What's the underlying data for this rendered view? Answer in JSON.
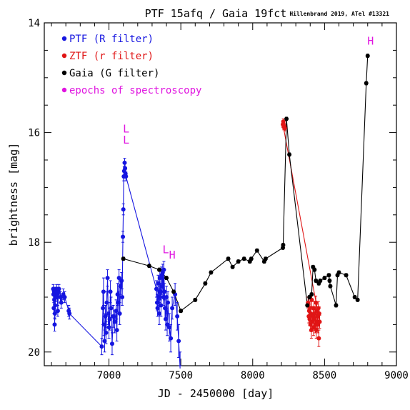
{
  "chart_data": {
    "type": "scatter",
    "title": "PTF 15afq / Gaia 19fct",
    "credit": "Hillenbrand 2019, ATel #13321",
    "xlabel": "JD - 2450000 [day]",
    "ylabel": "brightness [mag]",
    "xlim": [
      6550,
      9000
    ],
    "ylim": [
      20.25,
      14.0
    ],
    "y_inverted": true,
    "x_ticks": [
      7000,
      7500,
      8000,
      8500,
      9000
    ],
    "y_ticks": [
      14,
      16,
      18,
      20
    ],
    "legend_position": "top-left",
    "colors": {
      "ptf": "#1515e0",
      "ztf": "#e01515",
      "gaia": "#000000",
      "spec": "#e015e0"
    },
    "legend": [
      {
        "label": "PTF (R filter)",
        "color": "#1515e0"
      },
      {
        "label": "ZTF (r filter)",
        "color": "#e01515"
      },
      {
        "label": "Gaia (G filter)",
        "color": "#000000"
      },
      {
        "label": "epochs of spectroscopy",
        "color": "#e015e0"
      }
    ],
    "series": [
      {
        "name": "PTF (R filter)",
        "color": "#1515e0",
        "connect": "first-last-of-groups",
        "points": [
          [
            6612,
            18.85,
            0.08
          ],
          [
            6614,
            18.95,
            0.08
          ],
          [
            6616,
            19.2,
            0.1
          ],
          [
            6618,
            18.9,
            0.08
          ],
          [
            6620,
            19.05,
            0.08
          ],
          [
            6622,
            19.5,
            0.12
          ],
          [
            6624,
            19.3,
            0.1
          ],
          [
            6626,
            19.15,
            0.1
          ],
          [
            6628,
            18.9,
            0.08
          ],
          [
            6632,
            19.0,
            0.08
          ],
          [
            6636,
            18.85,
            0.08
          ],
          [
            6640,
            18.95,
            0.08
          ],
          [
            6644,
            19.25,
            0.1
          ],
          [
            6648,
            18.9,
            0.08
          ],
          [
            6652,
            18.85,
            0.08
          ],
          [
            6662,
            19.0,
            0.1
          ],
          [
            6668,
            19.1,
            0.1
          ],
          [
            6682,
            18.95,
            0.1
          ],
          [
            6692,
            19.0,
            0.1
          ],
          [
            6720,
            19.25,
            0.1
          ],
          [
            6725,
            19.3,
            0.1
          ],
          [
            6950,
            19.9,
            0.15
          ],
          [
            6958,
            19.2,
            0.3
          ],
          [
            6962,
            18.9,
            0.25
          ],
          [
            6966,
            19.5,
            0.2
          ],
          [
            6970,
            19.8,
            0.2
          ],
          [
            6975,
            19.35,
            0.2
          ],
          [
            6980,
            19.65,
            0.2
          ],
          [
            6985,
            19.1,
            0.2
          ],
          [
            6990,
            18.65,
            0.15
          ],
          [
            6995,
            19.3,
            0.2
          ],
          [
            7000,
            19.55,
            0.2
          ],
          [
            7005,
            19.4,
            0.2
          ],
          [
            7010,
            18.9,
            0.2
          ],
          [
            7015,
            19.2,
            0.2
          ],
          [
            7022,
            19.85,
            0.2
          ],
          [
            7030,
            19.35,
            0.2
          ],
          [
            7040,
            19.45,
            0.2
          ],
          [
            7050,
            19.25,
            0.2
          ],
          [
            7055,
            19.6,
            0.2
          ],
          [
            7060,
            18.95,
            0.2
          ],
          [
            7065,
            19.1,
            0.2
          ],
          [
            7070,
            18.65,
            0.15
          ],
          [
            7075,
            19.3,
            0.2
          ],
          [
            7080,
            18.8,
            0.15
          ],
          [
            7088,
            18.7,
            0.15
          ],
          [
            7092,
            19.0,
            0.15
          ],
          [
            7097,
            17.9,
            0.1
          ],
          [
            7100,
            17.4,
            0.1
          ],
          [
            7103,
            16.8,
            0.08
          ],
          [
            7106,
            16.7,
            0.08
          ],
          [
            7109,
            16.55,
            0.08
          ],
          [
            7112,
            16.65,
            0.08
          ],
          [
            7115,
            16.75,
            0.08
          ],
          [
            7118,
            16.8,
            0.08
          ],
          [
            7330,
            18.85,
            0.15
          ],
          [
            7335,
            19.1,
            0.15
          ],
          [
            7338,
            19.2,
            0.15
          ],
          [
            7342,
            18.75,
            0.15
          ],
          [
            7346,
            19.0,
            0.15
          ],
          [
            7350,
            19.3,
            0.2
          ],
          [
            7354,
            18.65,
            0.15
          ],
          [
            7358,
            18.9,
            0.15
          ],
          [
            7362,
            19.15,
            0.2
          ],
          [
            7366,
            18.6,
            0.15
          ],
          [
            7370,
            18.8,
            0.15
          ],
          [
            7374,
            18.55,
            0.15
          ],
          [
            7378,
            19.0,
            0.15
          ],
          [
            7382,
            18.5,
            0.15
          ],
          [
            7386,
            18.9,
            0.15
          ],
          [
            7390,
            19.2,
            0.2
          ],
          [
            7395,
            19.4,
            0.2
          ],
          [
            7400,
            19.0,
            0.2
          ],
          [
            7405,
            19.5,
            0.2
          ],
          [
            7410,
            19.1,
            0.2
          ],
          [
            7420,
            19.55,
            0.25
          ],
          [
            7430,
            19.75,
            0.25
          ],
          [
            7440,
            19.2,
            0.2
          ],
          [
            7460,
            18.95,
            0.2
          ],
          [
            7475,
            19.35,
            0.25
          ],
          [
            7485,
            19.8,
            0.3
          ],
          [
            7495,
            20.3,
            0.3
          ]
        ]
      },
      {
        "name": "ZTF (r filter)",
        "color": "#e01515",
        "connect": "first-last",
        "points": [
          [
            8210,
            15.85,
            0.05
          ],
          [
            8213,
            15.8,
            0.05
          ],
          [
            8216,
            15.9,
            0.05
          ],
          [
            8220,
            15.88,
            0.05
          ],
          [
            8224,
            15.92,
            0.05
          ],
          [
            8385,
            19.1,
            0.1
          ],
          [
            8390,
            19.35,
            0.12
          ],
          [
            8393,
            19.25,
            0.12
          ],
          [
            8396,
            19.4,
            0.12
          ],
          [
            8399,
            19.2,
            0.12
          ],
          [
            8402,
            19.5,
            0.12
          ],
          [
            8405,
            19.3,
            0.12
          ],
          [
            8408,
            19.6,
            0.15
          ],
          [
            8411,
            19.05,
            0.12
          ],
          [
            8414,
            19.45,
            0.12
          ],
          [
            8420,
            19.35,
            0.12
          ],
          [
            8423,
            19.55,
            0.15
          ],
          [
            8426,
            19.2,
            0.12
          ],
          [
            8430,
            19.4,
            0.12
          ],
          [
            8433,
            19.3,
            0.12
          ],
          [
            8436,
            19.5,
            0.15
          ],
          [
            8439,
            19.1,
            0.12
          ],
          [
            8442,
            19.6,
            0.15
          ],
          [
            8445,
            19.25,
            0.12
          ],
          [
            8448,
            19.45,
            0.12
          ],
          [
            8451,
            19.35,
            0.12
          ],
          [
            8454,
            19.5,
            0.15
          ],
          [
            8457,
            19.2,
            0.12
          ],
          [
            8460,
            19.75,
            0.15
          ],
          [
            8463,
            19.3,
            0.12
          ],
          [
            8466,
            19.45,
            0.12
          ]
        ]
      },
      {
        "name": "Gaia (G filter)",
        "color": "#000000",
        "connect": "all",
        "points": [
          [
            7100,
            18.3,
            0.03
          ],
          [
            7280,
            18.43,
            0.03
          ],
          [
            7350,
            18.5,
            0.03
          ],
          [
            7400,
            18.65,
            0.03
          ],
          [
            7450,
            18.9,
            0.03
          ],
          [
            7500,
            19.25,
            0.03
          ],
          [
            7600,
            19.05,
            0.03
          ],
          [
            7670,
            18.75,
            0.03
          ],
          [
            7710,
            18.55,
            0.03
          ],
          [
            7830,
            18.3,
            0.03
          ],
          [
            7860,
            18.45,
            0.03
          ],
          [
            7900,
            18.35,
            0.03
          ],
          [
            7940,
            18.3,
            0.03
          ],
          [
            7980,
            18.35,
            0.03
          ],
          [
            7990,
            18.3,
            0.03
          ],
          [
            8030,
            18.15,
            0.03
          ],
          [
            8080,
            18.35,
            0.03
          ],
          [
            8090,
            18.3,
            0.03
          ],
          [
            8210,
            18.1,
            0.03
          ],
          [
            8212,
            18.05,
            0.03
          ],
          [
            8235,
            15.75,
            0.03
          ],
          [
            8255,
            16.4,
            0.03
          ],
          [
            8380,
            19.15,
            0.03
          ],
          [
            8395,
            19.0,
            0.03
          ],
          [
            8410,
            18.95,
            0.03
          ],
          [
            8420,
            18.45,
            0.03
          ],
          [
            8430,
            18.5,
            0.03
          ],
          [
            8440,
            18.7,
            0.03
          ],
          [
            8460,
            18.75,
            0.03
          ],
          [
            8470,
            18.7,
            0.03
          ],
          [
            8500,
            18.65,
            0.03
          ],
          [
            8530,
            18.6,
            0.03
          ],
          [
            8535,
            18.7,
            0.03
          ],
          [
            8540,
            18.8,
            0.03
          ],
          [
            8580,
            19.15,
            0.03
          ],
          [
            8590,
            18.6,
            0.03
          ],
          [
            8600,
            18.55,
            0.03
          ],
          [
            8650,
            18.6,
            0.03
          ],
          [
            8710,
            19.0,
            0.03
          ],
          [
            8730,
            19.05,
            0.03
          ],
          [
            8790,
            15.1,
            0.03
          ],
          [
            8800,
            14.6,
            0.03
          ]
        ]
      }
    ],
    "spectroscopy_epochs": [
      {
        "label": "L",
        "x": 7120,
        "y": 16.0
      },
      {
        "label": "L",
        "x": 7120,
        "y": 16.2
      },
      {
        "label": "L",
        "x": 7395,
        "y": 18.2
      },
      {
        "label": "H",
        "x": 7440,
        "y": 18.3
      },
      {
        "label": "H",
        "x": 8820,
        "y": 14.4
      }
    ]
  }
}
